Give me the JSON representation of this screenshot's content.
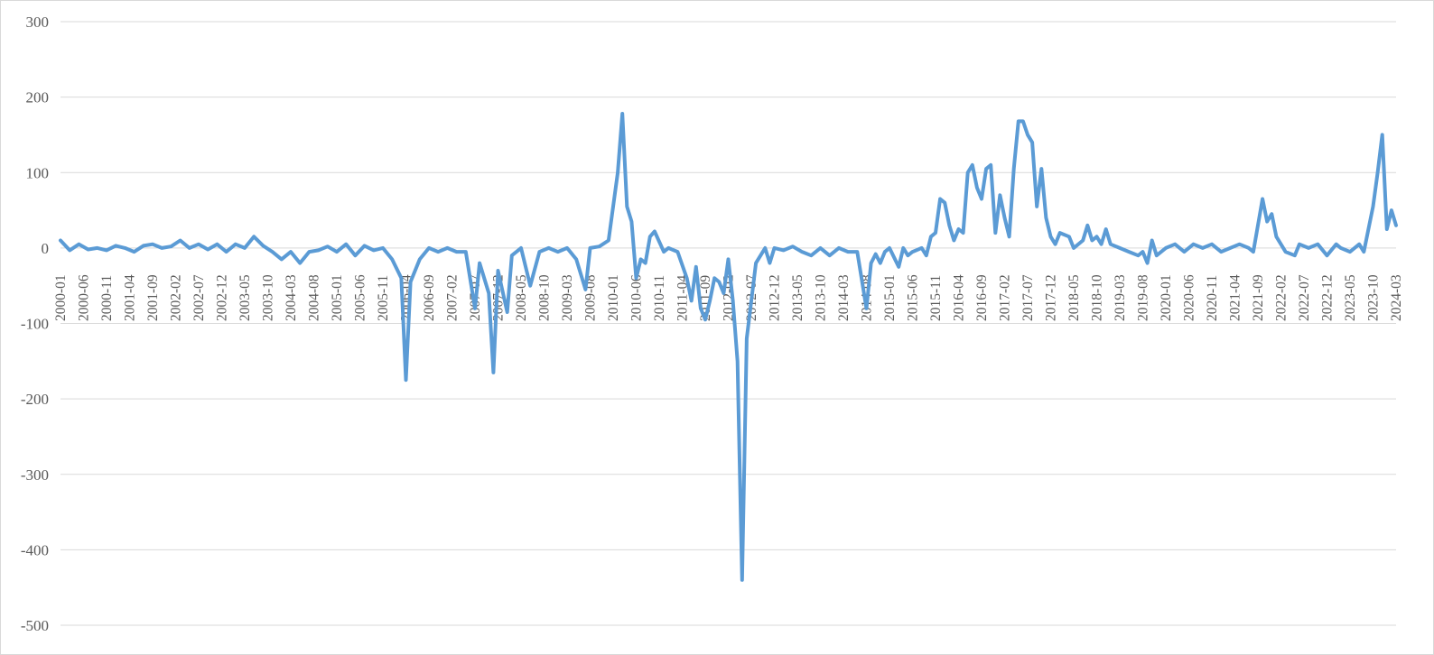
{
  "chart_data": {
    "type": "line",
    "title": "",
    "xlabel": "",
    "ylabel": "",
    "ylim": [
      -500,
      300
    ],
    "yticks": [
      300,
      200,
      100,
      0,
      -100,
      -200,
      -300,
      -400,
      -500
    ],
    "grid": true,
    "legend": "none",
    "x_tick_labels": [
      "2000-01",
      "2000-06",
      "2000-11",
      "2001-04",
      "2001-09",
      "2002-02",
      "2002-07",
      "2002-12",
      "2003-05",
      "2003-10",
      "2004-03",
      "2004-08",
      "2005-01",
      "2005-06",
      "2005-11",
      "2006-04",
      "2006-09",
      "2007-02",
      "2007-07",
      "2007-12",
      "2008-05",
      "2008-10",
      "2009-03",
      "2009-08",
      "2010-01",
      "2010-06",
      "2010-11",
      "2011-04",
      "2011-09",
      "2012-02",
      "2012-07",
      "2012-12",
      "2013-05",
      "2013-10",
      "2014-03",
      "2014-08",
      "2015-01",
      "2015-06",
      "2015-11",
      "2016-04",
      "2016-09",
      "2017-02",
      "2017-07",
      "2017-12",
      "2018-05",
      "2018-10",
      "2019-03",
      "2019-08",
      "2020-01",
      "2020-06",
      "2020-11",
      "2021-04",
      "2021-09",
      "2022-02",
      "2022-07",
      "2022-12",
      "2023-05",
      "2023-10",
      "2024-03"
    ],
    "x_start": "2000-01",
    "x_end": "2024-03",
    "series": [
      {
        "name": "",
        "color": "#5b9bd5",
        "points": [
          [
            "2000-01",
            10
          ],
          [
            "2000-03",
            -3
          ],
          [
            "2000-05",
            5
          ],
          [
            "2000-07",
            -2
          ],
          [
            "2000-09",
            0
          ],
          [
            "2000-11",
            -3
          ],
          [
            "2001-01",
            3
          ],
          [
            "2001-03",
            0
          ],
          [
            "2001-05",
            -5
          ],
          [
            "2001-07",
            3
          ],
          [
            "2001-09",
            5
          ],
          [
            "2001-11",
            0
          ],
          [
            "2002-01",
            2
          ],
          [
            "2002-03",
            10
          ],
          [
            "2002-05",
            0
          ],
          [
            "2002-07",
            5
          ],
          [
            "2002-09",
            -2
          ],
          [
            "2002-11",
            5
          ],
          [
            "2003-01",
            -5
          ],
          [
            "2003-03",
            5
          ],
          [
            "2003-05",
            0
          ],
          [
            "2003-07",
            15
          ],
          [
            "2003-09",
            3
          ],
          [
            "2003-11",
            -5
          ],
          [
            "2004-01",
            -15
          ],
          [
            "2004-03",
            -5
          ],
          [
            "2004-05",
            -20
          ],
          [
            "2004-07",
            -5
          ],
          [
            "2004-09",
            -3
          ],
          [
            "2004-11",
            2
          ],
          [
            "2005-01",
            -5
          ],
          [
            "2005-03",
            5
          ],
          [
            "2005-05",
            -10
          ],
          [
            "2005-07",
            3
          ],
          [
            "2005-09",
            -3
          ],
          [
            "2005-11",
            0
          ],
          [
            "2006-01",
            -15
          ],
          [
            "2006-03",
            -40
          ],
          [
            "2006-04",
            -175
          ],
          [
            "2006-05",
            -45
          ],
          [
            "2006-07",
            -15
          ],
          [
            "2006-09",
            0
          ],
          [
            "2006-11",
            -5
          ],
          [
            "2007-01",
            0
          ],
          [
            "2007-03",
            -5
          ],
          [
            "2007-05",
            -5
          ],
          [
            "2007-07",
            -80
          ],
          [
            "2007-08",
            -20
          ],
          [
            "2007-10",
            -60
          ],
          [
            "2007-11",
            -165
          ],
          [
            "2007-12",
            -30
          ],
          [
            "2008-02",
            -85
          ],
          [
            "2008-03",
            -10
          ],
          [
            "2008-05",
            0
          ],
          [
            "2008-07",
            -50
          ],
          [
            "2008-09",
            -5
          ],
          [
            "2008-11",
            0
          ],
          [
            "2009-01",
            -5
          ],
          [
            "2009-03",
            0
          ],
          [
            "2009-05",
            -15
          ],
          [
            "2009-07",
            -55
          ],
          [
            "2009-08",
            0
          ],
          [
            "2009-10",
            2
          ],
          [
            "2009-12",
            10
          ],
          [
            "2010-02",
            100
          ],
          [
            "2010-03",
            178
          ],
          [
            "2010-04",
            55
          ],
          [
            "2010-05",
            35
          ],
          [
            "2010-06",
            -40
          ],
          [
            "2010-07",
            -15
          ],
          [
            "2010-08",
            -20
          ],
          [
            "2010-09",
            15
          ],
          [
            "2010-10",
            22
          ],
          [
            "2010-12",
            -5
          ],
          [
            "2011-01",
            0
          ],
          [
            "2011-03",
            -5
          ],
          [
            "2011-05",
            -40
          ],
          [
            "2011-06",
            -70
          ],
          [
            "2011-07",
            -25
          ],
          [
            "2011-08",
            -80
          ],
          [
            "2011-09",
            -95
          ],
          [
            "2011-10",
            -70
          ],
          [
            "2011-11",
            -40
          ],
          [
            "2011-12",
            -45
          ],
          [
            "2012-01",
            -60
          ],
          [
            "2012-02",
            -15
          ],
          [
            "2012-03",
            -70
          ],
          [
            "2012-04",
            -150
          ],
          [
            "2012-05",
            -440
          ],
          [
            "2012-06",
            -120
          ],
          [
            "2012-08",
            -20
          ],
          [
            "2012-10",
            0
          ],
          [
            "2012-11",
            -20
          ],
          [
            "2012-12",
            0
          ],
          [
            "2013-02",
            -3
          ],
          [
            "2013-04",
            2
          ],
          [
            "2013-06",
            -5
          ],
          [
            "2013-08",
            -10
          ],
          [
            "2013-10",
            0
          ],
          [
            "2013-12",
            -10
          ],
          [
            "2014-02",
            0
          ],
          [
            "2014-04",
            -5
          ],
          [
            "2014-06",
            -5
          ],
          [
            "2014-08",
            -80
          ],
          [
            "2014-09",
            -20
          ],
          [
            "2014-10",
            -8
          ],
          [
            "2014-11",
            -20
          ],
          [
            "2014-12",
            -5
          ],
          [
            "2015-01",
            0
          ],
          [
            "2015-03",
            -25
          ],
          [
            "2015-04",
            0
          ],
          [
            "2015-05",
            -10
          ],
          [
            "2015-06",
            -5
          ],
          [
            "2015-08",
            0
          ],
          [
            "2015-09",
            -10
          ],
          [
            "2015-10",
            15
          ],
          [
            "2015-11",
            20
          ],
          [
            "2015-12",
            65
          ],
          [
            "2016-01",
            60
          ],
          [
            "2016-02",
            30
          ],
          [
            "2016-03",
            10
          ],
          [
            "2016-04",
            25
          ],
          [
            "2016-05",
            20
          ],
          [
            "2016-06",
            100
          ],
          [
            "2016-07",
            110
          ],
          [
            "2016-08",
            80
          ],
          [
            "2016-09",
            65
          ],
          [
            "2016-10",
            105
          ],
          [
            "2016-11",
            110
          ],
          [
            "2016-12",
            20
          ],
          [
            "2017-01",
            70
          ],
          [
            "2017-02",
            40
          ],
          [
            "2017-03",
            15
          ],
          [
            "2017-04",
            105
          ],
          [
            "2017-05",
            168
          ],
          [
            "2017-06",
            168
          ],
          [
            "2017-07",
            150
          ],
          [
            "2017-08",
            140
          ],
          [
            "2017-09",
            55
          ],
          [
            "2017-10",
            105
          ],
          [
            "2017-11",
            40
          ],
          [
            "2017-12",
            15
          ],
          [
            "2018-01",
            5
          ],
          [
            "2018-02",
            20
          ],
          [
            "2018-04",
            15
          ],
          [
            "2018-05",
            0
          ],
          [
            "2018-07",
            10
          ],
          [
            "2018-08",
            30
          ],
          [
            "2018-09",
            10
          ],
          [
            "2018-10",
            15
          ],
          [
            "2018-11",
            5
          ],
          [
            "2018-12",
            25
          ],
          [
            "2019-01",
            5
          ],
          [
            "2019-03",
            0
          ],
          [
            "2019-05",
            -5
          ],
          [
            "2019-07",
            -10
          ],
          [
            "2019-08",
            -5
          ],
          [
            "2019-09",
            -20
          ],
          [
            "2019-10",
            10
          ],
          [
            "2019-11",
            -10
          ],
          [
            "2020-01",
            0
          ],
          [
            "2020-03",
            5
          ],
          [
            "2020-05",
            -5
          ],
          [
            "2020-07",
            5
          ],
          [
            "2020-09",
            0
          ],
          [
            "2020-11",
            5
          ],
          [
            "2021-01",
            -5
          ],
          [
            "2021-03",
            0
          ],
          [
            "2021-05",
            5
          ],
          [
            "2021-07",
            0
          ],
          [
            "2021-08",
            -5
          ],
          [
            "2021-10",
            65
          ],
          [
            "2021-11",
            35
          ],
          [
            "2021-12",
            45
          ],
          [
            "2022-01",
            15
          ],
          [
            "2022-03",
            -5
          ],
          [
            "2022-05",
            -10
          ],
          [
            "2022-06",
            5
          ],
          [
            "2022-08",
            0
          ],
          [
            "2022-10",
            5
          ],
          [
            "2022-12",
            -10
          ],
          [
            "2023-02",
            5
          ],
          [
            "2023-03",
            0
          ],
          [
            "2023-05",
            -5
          ],
          [
            "2023-07",
            5
          ],
          [
            "2023-08",
            -5
          ],
          [
            "2023-10",
            55
          ],
          [
            "2023-11",
            100
          ],
          [
            "2023-12",
            150
          ],
          [
            "2024-01",
            25
          ],
          [
            "2024-02",
            50
          ],
          [
            "2024-03",
            30
          ]
        ]
      }
    ]
  }
}
